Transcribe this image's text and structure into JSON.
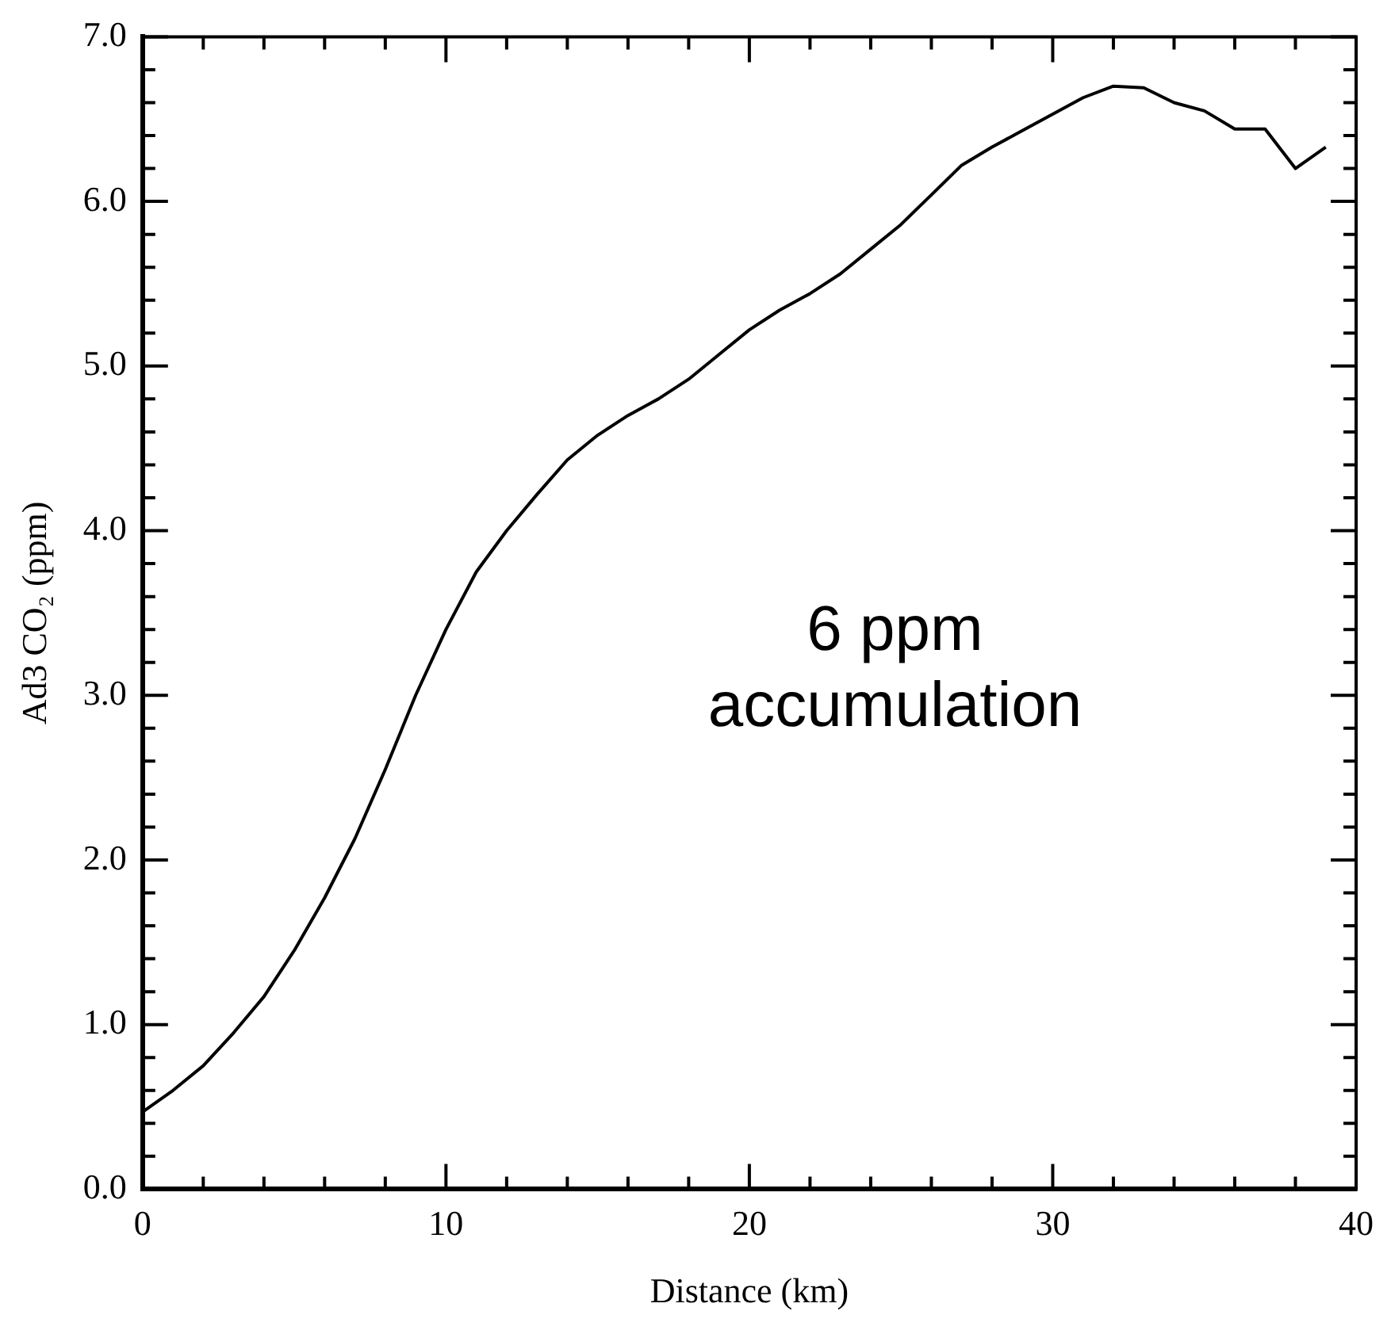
{
  "chart_data": {
    "type": "line",
    "xlabel": "Distance (km)",
    "ylabel": "Ad3 CO₂ (ppm)",
    "x": [
      0,
      1,
      2,
      3,
      4,
      5,
      6,
      7,
      8,
      9,
      10,
      11,
      12,
      13,
      14,
      15,
      16,
      17,
      18,
      19,
      20,
      21,
      22,
      23,
      24,
      25,
      26,
      27,
      28,
      29,
      30,
      31,
      32,
      33,
      34,
      35,
      36,
      37,
      38,
      39
    ],
    "series": [
      {
        "color": "#000000",
        "values": [
          0.47,
          0.6,
          0.75,
          0.95,
          1.17,
          1.45,
          1.77,
          2.13,
          2.55,
          3.0,
          3.4,
          3.75,
          4.0,
          4.22,
          4.43,
          4.58,
          4.7,
          4.8,
          4.92,
          5.07,
          5.22,
          5.34,
          5.44,
          5.56,
          5.71,
          5.86,
          6.04,
          6.22,
          6.33,
          6.43,
          6.53,
          6.63,
          6.7,
          6.69,
          6.6,
          6.55,
          6.44,
          6.44,
          6.2,
          6.33
        ]
      }
    ],
    "xlim": [
      0,
      40
    ],
    "xticks": [
      0,
      {
        "value": 2,
        "label": null
      },
      {
        "value": 4,
        "label": null
      },
      {
        "value": 6,
        "label": null
      },
      {
        "value": 8,
        "label": null
      },
      10,
      {
        "value": 12,
        "label": null
      },
      {
        "value": 14,
        "label": null
      },
      {
        "value": 16,
        "label": null
      },
      {
        "value": 18,
        "label": null
      },
      20,
      {
        "value": 22,
        "label": null
      },
      {
        "value": 24,
        "label": null
      },
      {
        "value": 26,
        "label": null
      },
      {
        "value": 28,
        "label": null
      },
      30,
      {
        "value": 32,
        "label": null
      },
      {
        "value": 34,
        "label": null
      },
      {
        "value": 36,
        "label": null
      },
      {
        "value": 38,
        "label": null
      },
      40
    ],
    "ylim": [
      0,
      7
    ],
    "yticks": [
      {
        "value": 0,
        "label": "0.0"
      },
      {
        "value": 0.2,
        "label": null
      },
      {
        "value": 0.4,
        "label": null
      },
      {
        "value": 0.6,
        "label": null
      },
      {
        "value": 0.8,
        "label": null
      },
      {
        "value": 1,
        "label": "1.0"
      },
      {
        "value": 1.2,
        "label": null
      },
      {
        "value": 1.4,
        "label": null
      },
      {
        "value": 1.6,
        "label": null
      },
      {
        "value": 1.8,
        "label": null
      },
      {
        "value": 2,
        "label": "2.0"
      },
      {
        "value": 2.2,
        "label": null
      },
      {
        "value": 2.4,
        "label": null
      },
      {
        "value": 2.6,
        "label": null
      },
      {
        "value": 2.8,
        "label": null
      },
      {
        "value": 3,
        "label": "3.0"
      },
      {
        "value": 3.2,
        "label": null
      },
      {
        "value": 3.4,
        "label": null
      },
      {
        "value": 3.6,
        "label": null
      },
      {
        "value": 3.8,
        "label": null
      },
      {
        "value": 4,
        "label": "4.0"
      },
      {
        "value": 4.2,
        "label": null
      },
      {
        "value": 4.4,
        "label": null
      },
      {
        "value": 4.6,
        "label": null
      },
      {
        "value": 4.8,
        "label": null
      },
      {
        "value": 5,
        "label": "5.0"
      },
      {
        "value": 5.2,
        "label": null
      },
      {
        "value": 5.4,
        "label": null
      },
      {
        "value": 5.6,
        "label": null
      },
      {
        "value": 5.8,
        "label": null
      },
      {
        "value": 6,
        "label": "6.0"
      },
      {
        "value": 6.2,
        "label": null
      },
      {
        "value": 6.4,
        "label": null
      },
      {
        "value": 6.6,
        "label": null
      },
      {
        "value": 6.8,
        "label": null
      },
      {
        "value": 7,
        "label": "7.0"
      }
    ],
    "annotations": [
      "6 ppm\naccumulation"
    ],
    "marker": "none",
    "line_style": "solid",
    "legend": false,
    "grid": false
  }
}
